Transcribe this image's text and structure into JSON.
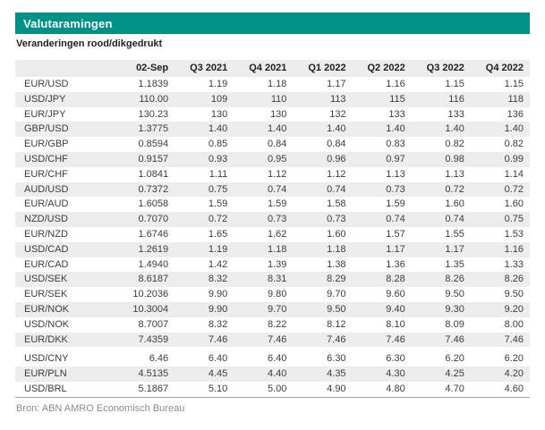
{
  "page": {
    "title": "Valutaramingen",
    "subtitle": "Veranderingen rood/dikgedrukt",
    "source": "Bron: ABN AMRO Economisch Bureau"
  },
  "colors": {
    "accent_teal": "#009286",
    "stripe_gray": "#ededed",
    "table_text": "#3c3c3c",
    "title_text": "#ffffff",
    "source_text": "#8c8c8c",
    "bottom_rule": "#a3a3a3"
  },
  "chart_data": {
    "type": "table",
    "title": "Valutaramingen",
    "note": "Veranderingen rood/dikgedrukt",
    "columns": [
      "",
      "02-Sep",
      "Q3 2021",
      "Q4 2021",
      "Q1 2022",
      "Q2 2022",
      "Q3 2022",
      "Q4 2022"
    ],
    "gap_after_row_index": 17,
    "rows": [
      {
        "pair": "EUR/USD",
        "values": [
          "1.1839",
          "1.19",
          "1.18",
          "1.17",
          "1.16",
          "1.15",
          "1.15"
        ]
      },
      {
        "pair": "USD/JPY",
        "values": [
          "110.00",
          "109",
          "110",
          "113",
          "115",
          "116",
          "118"
        ]
      },
      {
        "pair": "EUR/JPY",
        "values": [
          "130.23",
          "130",
          "130",
          "132",
          "133",
          "133",
          "136"
        ]
      },
      {
        "pair": "GBP/USD",
        "values": [
          "1.3775",
          "1.40",
          "1.40",
          "1.40",
          "1.40",
          "1.40",
          "1.40"
        ]
      },
      {
        "pair": "EUR/GBP",
        "values": [
          "0.8594",
          "0.85",
          "0.84",
          "0.84",
          "0.83",
          "0.82",
          "0.82"
        ]
      },
      {
        "pair": "USD/CHF",
        "values": [
          "0.9157",
          "0.93",
          "0.95",
          "0.96",
          "0.97",
          "0.98",
          "0.99"
        ]
      },
      {
        "pair": "EUR/CHF",
        "values": [
          "1.0841",
          "1.11",
          "1.12",
          "1.12",
          "1.13",
          "1.13",
          "1.14"
        ]
      },
      {
        "pair": "AUD/USD",
        "values": [
          "0.7372",
          "0.75",
          "0.74",
          "0.74",
          "0.73",
          "0.72",
          "0.72"
        ]
      },
      {
        "pair": "EUR/AUD",
        "values": [
          "1.6058",
          "1.59",
          "1.59",
          "1.58",
          "1.59",
          "1.60",
          "1.60"
        ]
      },
      {
        "pair": "NZD/USD",
        "values": [
          "0.7070",
          "0.72",
          "0.73",
          "0.73",
          "0.74",
          "0.74",
          "0.75"
        ]
      },
      {
        "pair": "EUR/NZD",
        "values": [
          "1.6746",
          "1.65",
          "1.62",
          "1.60",
          "1.57",
          "1.55",
          "1.53"
        ]
      },
      {
        "pair": "USD/CAD",
        "values": [
          "1.2619",
          "1.19",
          "1.18",
          "1.18",
          "1.17",
          "1.17",
          "1.16"
        ]
      },
      {
        "pair": "EUR/CAD",
        "values": [
          "1.4940",
          "1.42",
          "1.39",
          "1.38",
          "1.36",
          "1.35",
          "1.33"
        ]
      },
      {
        "pair": "USD/SEK",
        "values": [
          "8.6187",
          "8.32",
          "8.31",
          "8.29",
          "8.28",
          "8.26",
          "8.26"
        ]
      },
      {
        "pair": "EUR/SEK",
        "values": [
          "10.2036",
          "9.90",
          "9.80",
          "9.70",
          "9.60",
          "9.50",
          "9.50"
        ]
      },
      {
        "pair": "EUR/NOK",
        "values": [
          "10.3004",
          "9.90",
          "9.70",
          "9.50",
          "9.40",
          "9.30",
          "9.20"
        ]
      },
      {
        "pair": "USD/NOK",
        "values": [
          "8.7007",
          "8.32",
          "8.22",
          "8.12",
          "8.10",
          "8.09",
          "8.00"
        ]
      },
      {
        "pair": "EUR/DKK",
        "values": [
          "7.4359",
          "7.46",
          "7.46",
          "7.46",
          "7.46",
          "7.46",
          "7.46"
        ]
      },
      {
        "pair": "USD/CNY",
        "values": [
          "6.46",
          "6.40",
          "6.40",
          "6.30",
          "6.30",
          "6.20",
          "6.20"
        ]
      },
      {
        "pair": "EUR/PLN",
        "values": [
          "4.5135",
          "4.45",
          "4.40",
          "4.35",
          "4.30",
          "4.25",
          "4.20"
        ]
      },
      {
        "pair": "USD/BRL",
        "values": [
          "5.1867",
          "5.10",
          "5.00",
          "4.90",
          "4.80",
          "4.70",
          "4.60"
        ]
      }
    ],
    "source": "Bron: ABN AMRO Economisch Bureau"
  }
}
